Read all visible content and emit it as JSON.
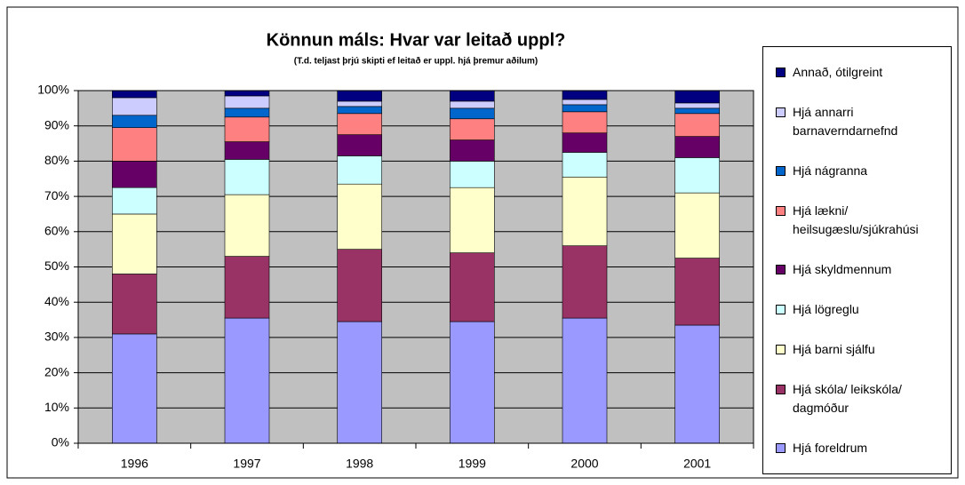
{
  "chart_data": {
    "type": "stacked_bar",
    "title": "Könnun máls: Hvar var leitað uppl?",
    "subtitle": "(T.d. teljast þrjú skipti ef leitað er uppl. hjá þremur aðilum)",
    "categories": [
      "1996",
      "1997",
      "1998",
      "1999",
      "2000",
      "2001"
    ],
    "series": [
      {
        "name": "Hjá foreldrum",
        "color": "#9999ff",
        "values": [
          31,
          35.5,
          34.5,
          34.5,
          35.5,
          33.5
        ]
      },
      {
        "name": "Hjá skóla/ leikskóla/ dagmóður",
        "color": "#993366",
        "values": [
          17,
          17.5,
          20.5,
          19.5,
          20.5,
          19
        ]
      },
      {
        "name": "Hjá barni sjálfu",
        "color": "#ffffcc",
        "values": [
          17,
          17.5,
          18.5,
          18.5,
          19.5,
          18.5
        ]
      },
      {
        "name": "Hjá lögreglu",
        "color": "#ccffff",
        "values": [
          7.5,
          10,
          8,
          7.5,
          7,
          10
        ]
      },
      {
        "name": "Hjá skyldmennum",
        "color": "#660066",
        "values": [
          7.5,
          5,
          6,
          6,
          5.5,
          6
        ]
      },
      {
        "name": "Hjá lækni/ heilsugæslu/sjúkrahúsi",
        "color": "#ff8080",
        "values": [
          9.5,
          7,
          6,
          6,
          6,
          6.5
        ]
      },
      {
        "name": "Hjá nágranna",
        "color": "#0066cc",
        "values": [
          3.5,
          2.5,
          2,
          3,
          2,
          1.5
        ]
      },
      {
        "name": "Hjá annarri barnaverndarnefnd",
        "color": "#ccccff",
        "values": [
          5,
          3.5,
          1.5,
          2,
          1.5,
          1.5
        ]
      },
      {
        "name": "Annað, ótilgreint",
        "color": "#000080",
        "values": [
          2,
          1.5,
          3,
          3,
          2.5,
          3.5
        ]
      }
    ],
    "ylim": [
      0,
      100
    ],
    "yticks": [
      {
        "value": 0,
        "label": "0%"
      },
      {
        "value": 10,
        "label": "10%"
      },
      {
        "value": 20,
        "label": "20%"
      },
      {
        "value": 30,
        "label": "30%"
      },
      {
        "value": 40,
        "label": "40%"
      },
      {
        "value": 50,
        "label": "50%"
      },
      {
        "value": 60,
        "label": "60%"
      },
      {
        "value": 70,
        "label": "70%"
      },
      {
        "value": 80,
        "label": "80%"
      },
      {
        "value": 90,
        "label": "90%"
      },
      {
        "value": 100,
        "label": "100%"
      }
    ],
    "grid": true,
    "legend": "right"
  }
}
